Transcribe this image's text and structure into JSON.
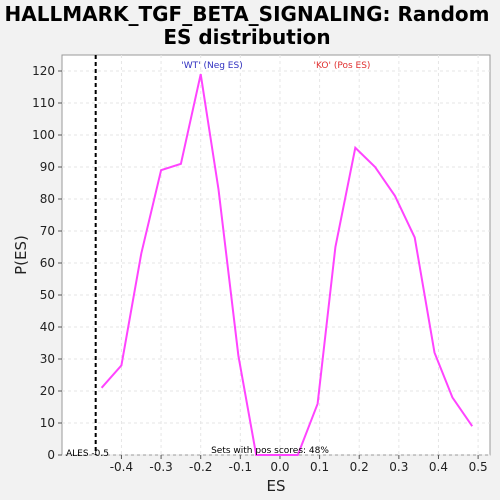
{
  "chart_data": {
    "type": "line",
    "title_line1": "HALLMARK_TGF_BETA_SIGNALING: Random",
    "title_line2": "ES distribution",
    "xlabel": "ES",
    "ylabel": "P(ES)",
    "xlim": [
      -0.55,
      0.53
    ],
    "ylim": [
      0,
      125
    ],
    "x_ticks": [
      -0.4,
      -0.3,
      -0.2,
      -0.1,
      0.0,
      0.1,
      0.2,
      0.3,
      0.4,
      0.5
    ],
    "x_tick_labels": [
      "-0.4",
      "-0.3",
      "-0.2",
      "-0.1",
      "0.0",
      "0.1",
      "0.2",
      "0.3",
      "0.4",
      "0.5"
    ],
    "y_ticks": [
      0,
      10,
      20,
      30,
      40,
      50,
      60,
      70,
      80,
      90,
      100,
      110,
      120
    ],
    "y_tick_labels": [
      "0",
      "10",
      "20",
      "30",
      "40",
      "50",
      "60",
      "70",
      "80",
      "90",
      "100",
      "110",
      "120"
    ],
    "grid": true,
    "series": [
      {
        "color": "#ff44ff",
        "x": [
          -0.45,
          -0.4,
          -0.35,
          -0.3,
          -0.25,
          -0.2,
          -0.155,
          -0.105,
          -0.06,
          0.0,
          0.045,
          0.095,
          0.14,
          0.19,
          0.24,
          0.29,
          0.34,
          0.39,
          0.435,
          0.485
        ],
        "y": [
          21,
          28,
          63,
          89,
          91,
          119,
          83,
          31,
          0,
          0,
          0,
          16,
          65,
          96,
          90,
          81,
          68,
          32,
          18,
          9
        ]
      }
    ],
    "actual_es": {
      "x": -0.465,
      "label": "ALES -0.5"
    },
    "annotations": {
      "neg_label": "'WT' (Neg ES)",
      "neg_color": "#3030c0",
      "pos_label": "'KO' (Pos ES)",
      "pos_color": "#e03030",
      "pos_scores_text": "Sets with pos scores: 48%"
    }
  }
}
